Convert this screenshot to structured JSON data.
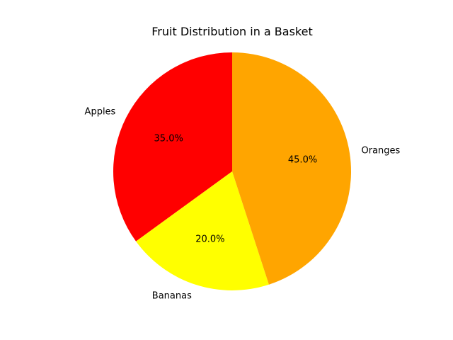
{
  "chart_data": {
    "type": "pie",
    "title": "Fruit Distribution in a Basket",
    "categories": [
      "Apples",
      "Bananas",
      "Oranges"
    ],
    "values": [
      35,
      20,
      45
    ],
    "percent_labels": [
      "35.0%",
      "20.0%",
      "45.0%"
    ],
    "colors": [
      "#ff0000",
      "#ffff00",
      "#ffa500"
    ],
    "start_angle_deg": 90,
    "direction": "counterclockwise",
    "legend": "none"
  }
}
